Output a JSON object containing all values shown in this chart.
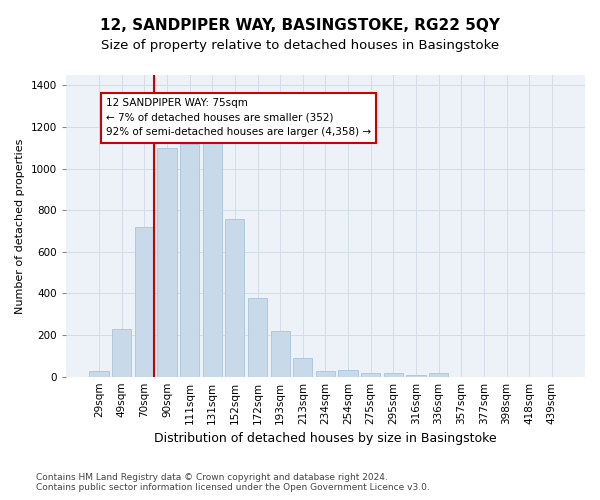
{
  "title": "12, SANDPIPER WAY, BASINGSTOKE, RG22 5QY",
  "subtitle": "Size of property relative to detached houses in Basingstoke",
  "xlabel": "Distribution of detached houses by size in Basingstoke",
  "ylabel": "Number of detached properties",
  "categories": [
    "29sqm",
    "49sqm",
    "70sqm",
    "90sqm",
    "111sqm",
    "131sqm",
    "152sqm",
    "172sqm",
    "193sqm",
    "213sqm",
    "234sqm",
    "254sqm",
    "275sqm",
    "295sqm",
    "316sqm",
    "336sqm",
    "357sqm",
    "377sqm",
    "398sqm",
    "418sqm",
    "439sqm"
  ],
  "values": [
    28,
    230,
    720,
    1100,
    1120,
    1130,
    760,
    380,
    220,
    90,
    28,
    30,
    20,
    18,
    10,
    18,
    0,
    0,
    0,
    0,
    0
  ],
  "bar_color": "#c8daea",
  "bar_edge_color": "#aac4dc",
  "red_line_color": "#cc0000",
  "annotation_line1": "12 SANDPIPER WAY: 75sqm",
  "annotation_line2": "← 7% of detached houses are smaller (352)",
  "annotation_line3": "92% of semi-detached houses are larger (4,358) →",
  "annotation_box_color": "#ffffff",
  "annotation_box_edge": "#cc0000",
  "ylim": [
    0,
    1450
  ],
  "grid_color": "#d0d8e8",
  "bg_color": "#edf2f9",
  "footnote1": "Contains HM Land Registry data © Crown copyright and database right 2024.",
  "footnote2": "Contains public sector information licensed under the Open Government Licence v3.0.",
  "title_fontsize": 11,
  "subtitle_fontsize": 9.5,
  "xlabel_fontsize": 9,
  "ylabel_fontsize": 8,
  "tick_fontsize": 7.5,
  "footnote_fontsize": 6.5
}
